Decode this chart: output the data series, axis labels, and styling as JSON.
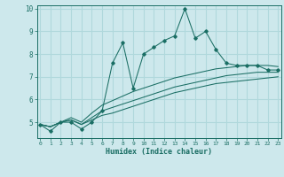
{
  "xlabel": "Humidex (Indice chaleur)",
  "bg_color": "#cde8ec",
  "line_color": "#1a6e64",
  "grid_color": "#b0d8dc",
  "x_min": 0,
  "x_max": 23,
  "y_min": 4.3,
  "y_max": 10.15,
  "yticks": [
    5,
    6,
    7,
    8,
    9,
    10
  ],
  "xticks": [
    0,
    1,
    2,
    3,
    4,
    5,
    6,
    7,
    8,
    9,
    10,
    11,
    12,
    13,
    14,
    15,
    16,
    17,
    18,
    19,
    20,
    21,
    22,
    23
  ],
  "line1": [
    4.9,
    4.6,
    5.0,
    5.0,
    4.7,
    5.0,
    5.5,
    7.6,
    8.5,
    6.5,
    8.0,
    8.3,
    8.6,
    8.8,
    10.0,
    8.7,
    9.0,
    8.2,
    7.6,
    7.5,
    7.5,
    7.5,
    7.3,
    7.3
  ],
  "line2": [
    4.9,
    4.8,
    5.0,
    5.1,
    4.9,
    5.1,
    5.3,
    5.4,
    5.55,
    5.7,
    5.85,
    6.0,
    6.15,
    6.3,
    6.4,
    6.5,
    6.6,
    6.7,
    6.75,
    6.8,
    6.85,
    6.9,
    6.95,
    7.0
  ],
  "line3": [
    4.9,
    4.8,
    5.0,
    5.1,
    4.9,
    5.2,
    5.5,
    5.65,
    5.8,
    5.95,
    6.1,
    6.25,
    6.4,
    6.55,
    6.65,
    6.75,
    6.85,
    6.95,
    7.05,
    7.1,
    7.15,
    7.2,
    7.2,
    7.2
  ],
  "line4": [
    4.9,
    4.8,
    5.0,
    5.2,
    5.0,
    5.4,
    5.75,
    5.95,
    6.15,
    6.35,
    6.5,
    6.65,
    6.8,
    6.95,
    7.05,
    7.15,
    7.25,
    7.35,
    7.4,
    7.45,
    7.5,
    7.5,
    7.5,
    7.45
  ]
}
